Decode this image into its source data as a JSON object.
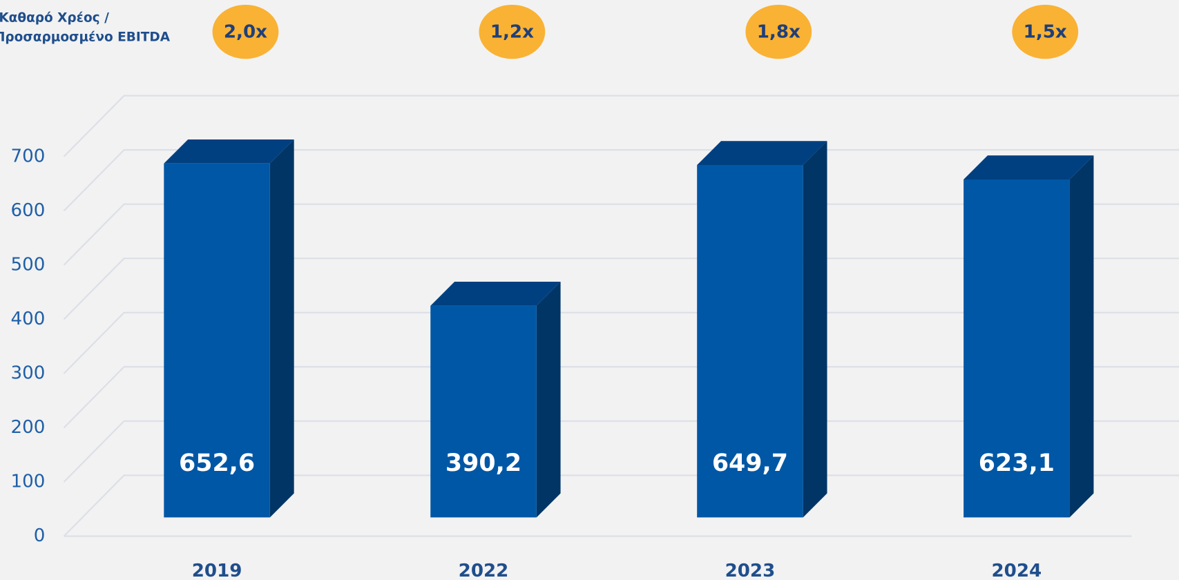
{
  "chart_data": {
    "type": "bar",
    "note": [
      "Καθαρό Χρέος /",
      "Προσαρμοσμένο EBITDA"
    ],
    "ratios": [
      "2,0x",
      "1,2x",
      "1,8x",
      "1,5x"
    ],
    "categories": [
      "2019",
      "2022",
      "2023",
      "2024"
    ],
    "values": [
      652.6,
      390.2,
      649.7,
      623.1
    ],
    "value_labels": [
      "652,6",
      "390,2",
      "649,7",
      "623,1"
    ],
    "color": "#0057a5",
    "ylim": [
      0,
      700
    ],
    "yticks": [
      0,
      100,
      200,
      300,
      400,
      500,
      600,
      700
    ],
    "grid": true
  }
}
